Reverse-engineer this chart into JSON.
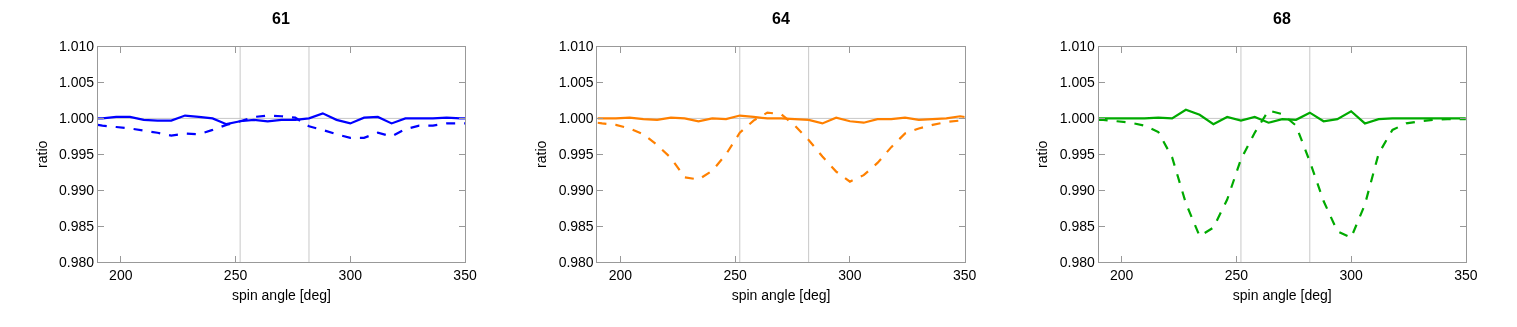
{
  "chart_data": [
    {
      "type": "line",
      "title": "61",
      "xlabel": "spin angle [deg]",
      "ylabel": "ratio",
      "x": [
        190,
        192,
        198,
        204,
        210,
        216,
        222,
        228,
        234,
        240,
        246,
        252,
        258,
        264,
        270,
        276,
        282,
        288,
        294,
        300,
        306,
        312,
        318,
        324,
        330,
        336,
        342,
        348,
        350
      ],
      "series": [
        {
          "color": "#0000ff",
          "line_style": "solid",
          "values": [
            1.0,
            1.0,
            1.0002,
            1.0002,
            0.9998,
            0.9997,
            0.9997,
            1.0004,
            1.0002,
            1.0,
            0.9992,
            0.9996,
            0.9998,
            0.9996,
            0.9998,
            0.9998,
            1.0,
            1.0007,
            0.9998,
            0.9993,
            1.0001,
            1.0002,
            0.9993,
            1.0,
            1.0,
            1.0,
            1.0001,
            1.0,
            1.0
          ]
        },
        {
          "color": "#0000ff",
          "line_style": "dashed",
          "values": [
            0.9991,
            0.999,
            0.9988,
            0.9986,
            0.9983,
            0.998,
            0.9976,
            0.9979,
            0.9978,
            0.9984,
            0.9991,
            0.9996,
            1.0002,
            1.0004,
            1.0003,
            1.0001,
            0.9989,
            0.9984,
            0.9978,
            0.9973,
            0.9973,
            0.998,
            0.9975,
            0.9985,
            0.999,
            0.999,
            0.9993,
            0.9993,
            0.9993
          ]
        }
      ],
      "xlim": [
        190,
        350
      ],
      "xticks": [
        200,
        250,
        300,
        350
      ],
      "ylim": [
        0.98,
        1.01
      ],
      "yticks": [
        {
          "value": 0.98,
          "label": "0.980"
        },
        {
          "value": 0.985,
          "label": "0.985"
        },
        {
          "value": 0.99,
          "label": "0.990"
        },
        {
          "value": 0.995,
          "label": "0.995"
        },
        {
          "value": 1.0,
          "label": "1.000"
        },
        {
          "value": 1.005,
          "label": "1.005"
        },
        {
          "value": 1.01,
          "label": "1.010"
        }
      ],
      "ref_lines": [
        {
          "axis": "x",
          "value": 252,
          "color": "#c8c8c8"
        },
        {
          "axis": "x",
          "value": 282,
          "color": "#c8c8c8"
        },
        {
          "axis": "y",
          "value": 1.0,
          "color": "#c8c8c8"
        }
      ]
    },
    {
      "type": "line",
      "title": "64",
      "xlabel": "spin angle [deg]",
      "ylabel": "ratio",
      "x": [
        190,
        192,
        198,
        204,
        210,
        216,
        222,
        228,
        234,
        240,
        246,
        252,
        258,
        264,
        270,
        276,
        282,
        288,
        294,
        300,
        306,
        312,
        318,
        324,
        330,
        336,
        342,
        348,
        350
      ],
      "series": [
        {
          "color": "#ff8000",
          "line_style": "solid",
          "values": [
            1.0,
            1.0,
            1.0,
            1.0001,
            0.9999,
            0.9998,
            1.0001,
            1.0,
            0.9996,
            1.0,
            0.9999,
            1.0004,
            1.0002,
            1.0,
            1.0,
            0.9999,
            0.9998,
            0.9993,
            1.0001,
            0.9996,
            0.9994,
            0.9999,
            0.9999,
            1.0001,
            0.9998,
            0.9999,
            1.0,
            1.0003,
            1.0002
          ]
        },
        {
          "color": "#ff8000",
          "line_style": "dashed",
          "values": [
            0.9994,
            0.9993,
            0.9991,
            0.9986,
            0.9978,
            0.9963,
            0.9945,
            0.9918,
            0.9915,
            0.9927,
            0.995,
            0.998,
            0.9997,
            1.0008,
            1.0006,
            0.999,
            0.997,
            0.9947,
            0.9926,
            0.9912,
            0.9921,
            0.9938,
            0.996,
            0.9979,
            0.9986,
            0.9991,
            0.9995,
            0.9997,
            0.9998
          ]
        }
      ],
      "xlim": [
        190,
        350
      ],
      "xticks": [
        200,
        250,
        300,
        350
      ],
      "ylim": [
        0.98,
        1.01
      ],
      "yticks": [
        {
          "value": 0.98,
          "label": "0.980"
        },
        {
          "value": 0.985,
          "label": "0.985"
        },
        {
          "value": 0.99,
          "label": "0.990"
        },
        {
          "value": 0.995,
          "label": "0.995"
        },
        {
          "value": 1.0,
          "label": "1.000"
        },
        {
          "value": 1.005,
          "label": "1.005"
        },
        {
          "value": 1.01,
          "label": "1.010"
        }
      ],
      "ref_lines": [
        {
          "axis": "x",
          "value": 252,
          "color": "#c8c8c8"
        },
        {
          "axis": "x",
          "value": 282,
          "color": "#c8c8c8"
        },
        {
          "axis": "y",
          "value": 1.0,
          "color": "#c8c8c8"
        }
      ]
    },
    {
      "type": "line",
      "title": "68",
      "xlabel": "spin angle [deg]",
      "ylabel": "ratio",
      "x": [
        190,
        192,
        198,
        204,
        210,
        216,
        222,
        228,
        234,
        240,
        246,
        252,
        258,
        264,
        270,
        276,
        282,
        288,
        294,
        300,
        306,
        312,
        318,
        324,
        330,
        336,
        342,
        348,
        350
      ],
      "series": [
        {
          "color": "#00aa00",
          "line_style": "solid",
          "values": [
            1.0,
            1.0,
            1.0,
            1.0,
            1.0,
            1.0001,
            1.0,
            1.0012,
            1.0005,
            0.9992,
            1.0002,
            0.9997,
            1.0002,
            0.9994,
            0.9999,
            0.9998,
            1.0008,
            0.9996,
            0.9999,
            1.001,
            0.9993,
            0.9999,
            1.0,
            1.0,
            1.0,
            1.0,
            1.0,
            1.0,
            1.0
          ]
        },
        {
          "color": "#00aa00",
          "line_style": "dashed",
          "values": [
            0.9998,
            0.9998,
            0.9996,
            0.9994,
            0.999,
            0.9981,
            0.9946,
            0.9882,
            0.9836,
            0.9848,
            0.9887,
            0.9943,
            0.998,
            1.0011,
            1.0006,
            0.999,
            0.994,
            0.9885,
            0.9843,
            0.9834,
            0.988,
            0.9951,
            0.9984,
            0.9993,
            0.9996,
            0.9998,
            0.9999,
            0.9999,
            0.9999
          ]
        }
      ],
      "xlim": [
        190,
        350
      ],
      "xticks": [
        200,
        250,
        300,
        350
      ],
      "ylim": [
        0.98,
        1.01
      ],
      "yticks": [
        {
          "value": 0.98,
          "label": "0.980"
        },
        {
          "value": 0.985,
          "label": "0.985"
        },
        {
          "value": 0.99,
          "label": "0.990"
        },
        {
          "value": 0.995,
          "label": "0.995"
        },
        {
          "value": 1.0,
          "label": "1.000"
        },
        {
          "value": 1.005,
          "label": "1.005"
        },
        {
          "value": 1.01,
          "label": "1.010"
        }
      ],
      "ref_lines": [
        {
          "axis": "x",
          "value": 252,
          "color": "#c8c8c8"
        },
        {
          "axis": "x",
          "value": 282,
          "color": "#c8c8c8"
        },
        {
          "axis": "y",
          "value": 1.0,
          "color": "#c8c8c8"
        }
      ]
    }
  ]
}
